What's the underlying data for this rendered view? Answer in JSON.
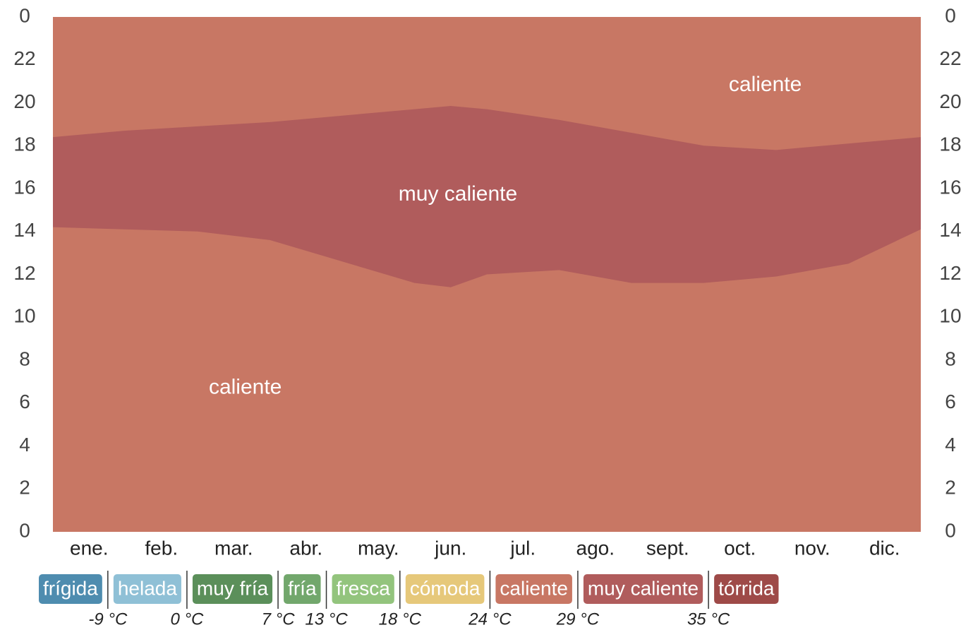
{
  "chart_data": {
    "type": "band",
    "categories": [
      "ene.",
      "feb.",
      "mar.",
      "abr.",
      "may.",
      "jun.",
      "jul.",
      "ago.",
      "sept.",
      "oct.",
      "nov.",
      "dic."
    ],
    "x": [
      0,
      1,
      2,
      3,
      4,
      5,
      5.5,
      6,
      7,
      8,
      9,
      10,
      11,
      12
    ],
    "xlim": [
      0,
      12
    ],
    "ylim": [
      0,
      24
    ],
    "yticks": [
      0,
      2,
      4,
      6,
      8,
      10,
      12,
      14,
      16,
      18,
      20,
      22,
      {
        "value": 24,
        "label": "0"
      }
    ],
    "background_color": "#c87764",
    "series": [
      {
        "name": "muy caliente",
        "color": "#b05c5c",
        "upper": [
          18.4,
          18.7,
          18.9,
          19.1,
          19.4,
          19.7,
          19.85,
          19.7,
          19.2,
          18.6,
          18.0,
          17.8,
          18.1,
          18.4
        ],
        "lower": [
          14.2,
          14.1,
          14.0,
          13.6,
          12.6,
          11.6,
          11.4,
          12.0,
          12.2,
          11.6,
          11.6,
          11.9,
          12.5,
          14.1
        ]
      }
    ],
    "annotations": [
      {
        "text": "caliente",
        "x": 9.85,
        "y": 20.8
      },
      {
        "text": "muy caliente",
        "x": 5.6,
        "y": 15.7
      },
      {
        "text": "caliente",
        "x": 2.66,
        "y": 6.7
      }
    ],
    "legend": [
      {
        "name": "frígida",
        "color": "#4e8caf"
      },
      {
        "name": "helada",
        "color": "#8fc0d6"
      },
      {
        "name": "muy fría",
        "color": "#5b8f5a"
      },
      {
        "name": "fría",
        "color": "#72a76c"
      },
      {
        "name": "fresca",
        "color": "#93c47d"
      },
      {
        "name": "cómoda",
        "color": "#e6c87a"
      },
      {
        "name": "caliente",
        "color": "#c87764"
      },
      {
        "name": "muy caliente",
        "color": "#b05c5c"
      },
      {
        "name": "tórrida",
        "color": "#9e4a48"
      }
    ],
    "thresholds": [
      {
        "value": -9,
        "label": "-9 °C"
      },
      {
        "value": 0,
        "label": "0 °C"
      },
      {
        "value": 7,
        "label": "7 °C"
      },
      {
        "value": 13,
        "label": "13 °C"
      },
      {
        "value": 18,
        "label": "18 °C"
      },
      {
        "value": 24,
        "label": "24 °C"
      },
      {
        "value": 29,
        "label": "29 °C"
      },
      {
        "value": 35,
        "label": "35 °C"
      }
    ]
  }
}
